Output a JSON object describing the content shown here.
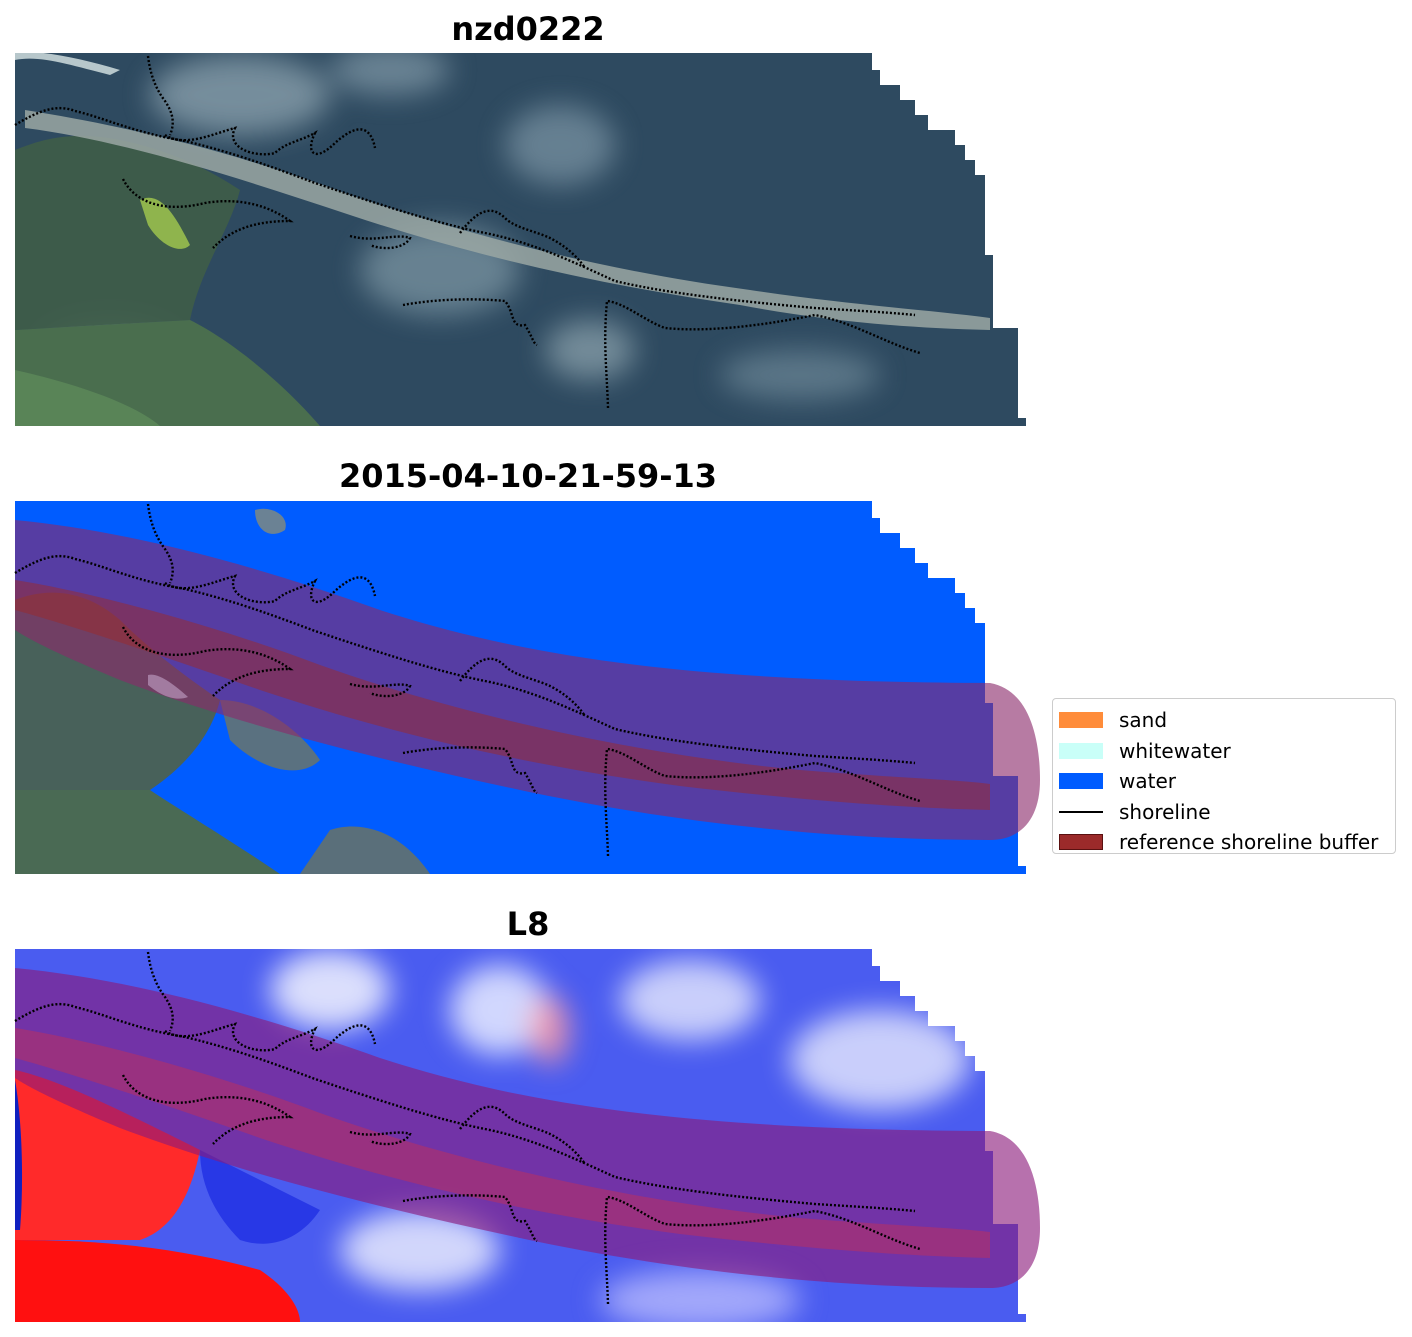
{
  "panels": [
    {
      "title": "nzd0222",
      "image": "rgb-satellite"
    },
    {
      "title": "2015-04-10-21-59-13",
      "image": "classified-overlay"
    },
    {
      "title": "L8",
      "image": "index-colormap"
    }
  ],
  "legend": {
    "items": [
      {
        "label": "sand",
        "kind": "patch",
        "color": "#ff8c3a"
      },
      {
        "label": "whitewater",
        "kind": "patch",
        "color": "#c9fff8"
      },
      {
        "label": "water",
        "kind": "patch",
        "color": "#005cff"
      },
      {
        "label": "shoreline",
        "kind": "line",
        "color": "#000000"
      },
      {
        "label": "reference shoreline buffer",
        "kind": "patch",
        "color": "#9b2a2a"
      }
    ]
  },
  "colors": {
    "ocean": "#2e4a60",
    "land": "#3d5a48",
    "water_class": "#005cff",
    "buffer": "#9b2a2a",
    "index_high": "#ff0000",
    "index_low": "#0000ff"
  }
}
